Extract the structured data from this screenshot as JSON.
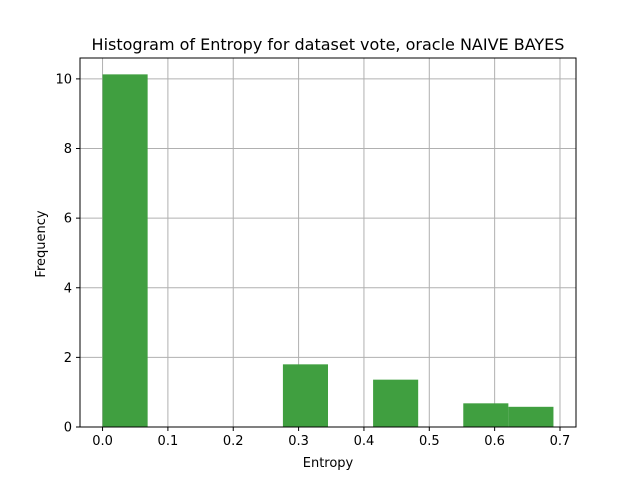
{
  "chart_data": {
    "type": "bar",
    "title": "Histogram of Entropy for dataset vote, oracle NAIVE BAYES",
    "xlabel": "Entropy",
    "ylabel": "Frequency",
    "xlim": [
      -0.0345,
      0.7245
    ],
    "ylim": [
      0,
      10.6
    ],
    "xticks": [
      0.0,
      0.1,
      0.2,
      0.3,
      0.4,
      0.5,
      0.6,
      0.7
    ],
    "xtick_labels": [
      "0.0",
      "0.1",
      "0.2",
      "0.3",
      "0.4",
      "0.5",
      "0.6",
      "0.7"
    ],
    "yticks": [
      0,
      2,
      4,
      6,
      8,
      10
    ],
    "ytick_labels": [
      "0",
      "2",
      "4",
      "6",
      "8",
      "10"
    ],
    "grid": true,
    "color": "#409f40",
    "bins": [
      {
        "x0": 0.0,
        "x1": 0.069,
        "value": 10.13
      },
      {
        "x0": 0.069,
        "x1": 0.138,
        "value": 0
      },
      {
        "x0": 0.138,
        "x1": 0.207,
        "value": 0
      },
      {
        "x0": 0.207,
        "x1": 0.276,
        "value": 0
      },
      {
        "x0": 0.276,
        "x1": 0.345,
        "value": 1.8
      },
      {
        "x0": 0.345,
        "x1": 0.414,
        "value": 0
      },
      {
        "x0": 0.414,
        "x1": 0.483,
        "value": 1.36
      },
      {
        "x0": 0.483,
        "x1": 0.552,
        "value": 0
      },
      {
        "x0": 0.552,
        "x1": 0.621,
        "value": 0.68
      },
      {
        "x0": 0.621,
        "x1": 0.69,
        "value": 0.58
      }
    ]
  }
}
